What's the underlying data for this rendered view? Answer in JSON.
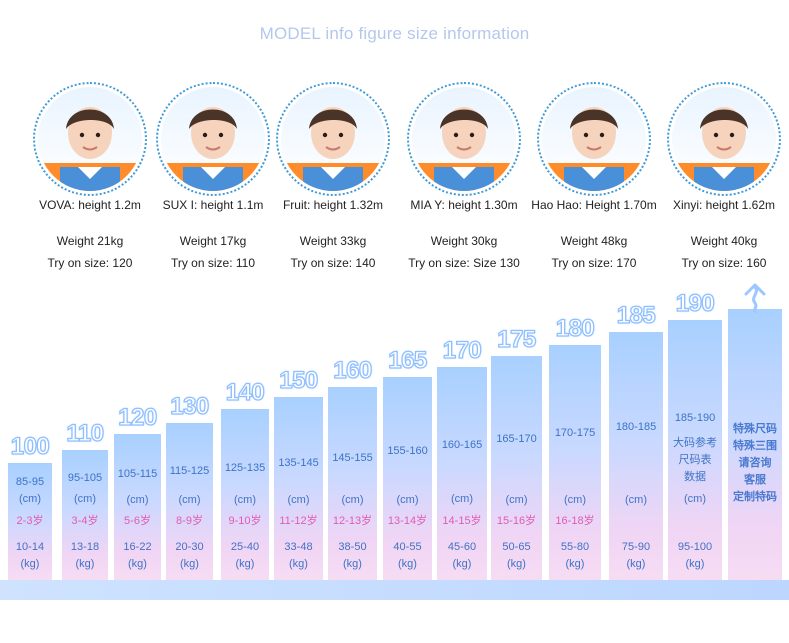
{
  "title": "MODEL info figure size information",
  "models": [
    {
      "name": "VOVA: height 1.2m",
      "weight": "Weight 21kg",
      "size": "Try on size: 120",
      "shirt": "#ff8c2a"
    },
    {
      "name": "SUX I: height 1.1m",
      "weight": "Weight 17kg",
      "size": "Try on size: 110",
      "shirt": "#ff8c2a"
    },
    {
      "name": "Fruit: height 1.32m",
      "weight": "Weight 33kg",
      "size": "Try on size: 140",
      "shirt": "#ff8c2a"
    },
    {
      "name": "MIA Y: height 1.30m",
      "weight": "Weight 30kg",
      "size": "Try on size: Size 130",
      "shirt": "#ff8c2a"
    },
    {
      "name": "Hao Hao: Height 1.70m",
      "weight": "Weight 48kg",
      "size": "Try on size: 170",
      "shirt": "#ff8c2a"
    },
    {
      "name": "Xinyi: height 1.62m",
      "weight": "Weight 40kg",
      "size": "Try on size: 160",
      "shirt": "#ff8c2a"
    }
  ],
  "size_chart": [
    {
      "size": "100",
      "height": "85-95",
      "unit": "(cm)",
      "age": "2-3岁",
      "kg": "10-14",
      "kg_unit": "(kg)"
    },
    {
      "size": "110",
      "height": "95-105",
      "unit": "(cm)",
      "age": "3-4岁",
      "kg": "13-18",
      "kg_unit": "(kg)"
    },
    {
      "size": "120",
      "height": "105-115",
      "unit": "(cm)",
      "age": "5-6岁",
      "kg": "16-22",
      "kg_unit": "(kg)"
    },
    {
      "size": "130",
      "height": "115-125",
      "unit": "(cm)",
      "age": "8-9岁",
      "kg": "20-30",
      "kg_unit": "(kg)"
    },
    {
      "size": "140",
      "height": "125-135",
      "unit": "(cm)",
      "age": "9-10岁",
      "kg": "25-40",
      "kg_unit": "(kg)"
    },
    {
      "size": "150",
      "height": "135-145",
      "unit": "(cm)",
      "age": "11-12岁",
      "kg": "33-48",
      "kg_unit": "(kg)"
    },
    {
      "size": "160",
      "height": "145-155",
      "unit": "(cm)",
      "age": "12-13岁",
      "kg": "38-50",
      "kg_unit": "(kg)"
    },
    {
      "size": "165",
      "height": "155-160",
      "unit": "(cm)",
      "age": "13-14岁",
      "kg": "40-55",
      "kg_unit": "(kg)"
    },
    {
      "size": "170",
      "height": "160-165",
      "unit": "(cm)",
      "age": "14-15岁",
      "kg": "45-60",
      "kg_unit": "(kg)"
    },
    {
      "size": "175",
      "height": "165-170",
      "unit": "(cm)",
      "age": "15-16岁",
      "kg": "50-65",
      "kg_unit": "(kg)"
    },
    {
      "size": "180",
      "height": "170-175",
      "unit": "(cm)",
      "age": "16-18岁",
      "kg": "55-80",
      "kg_unit": "(kg)"
    },
    {
      "size": "185",
      "height": "180-185",
      "unit": "(cm)",
      "age": "",
      "kg": "75-90",
      "kg_unit": "(kg)"
    },
    {
      "size": "190",
      "height": "185-190",
      "unit": "(cm)",
      "age": "",
      "kg": "95-100",
      "kg_unit": "(kg)",
      "note": [
        "大码参考",
        "尺码表",
        "数据"
      ]
    }
  ],
  "special": [
    "特殊尺码",
    "特殊三围",
    "请咨询",
    "客服",
    "定制特码"
  ]
}
